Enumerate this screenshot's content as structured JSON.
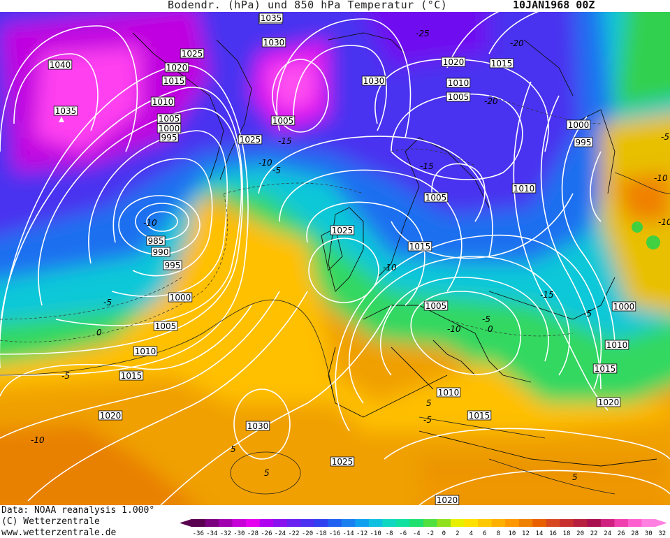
{
  "title": {
    "main": "Bodendr. (hPa) und 850 hPa Temperatur (°C)",
    "date": "10JAN1968 00Z"
  },
  "footer": {
    "data_source": "Data: NOAA reanalysis 1.000°",
    "copyright": "(C) Wetterzentrale",
    "website": "www.wetterzentrale.de"
  },
  "colorbar": {
    "ticks": [
      "-36",
      "-34",
      "-32",
      "-30",
      "-28",
      "-26",
      "-24",
      "-22",
      "-20",
      "-18",
      "-16",
      "-14",
      "-12",
      "-10",
      "-8",
      "-6",
      "-4",
      "-2",
      "0",
      "2",
      "4",
      "6",
      "8",
      "10",
      "12",
      "14",
      "16",
      "18",
      "20",
      "22",
      "24",
      "26",
      "28",
      "30",
      "32"
    ],
    "colors": [
      "#5a0050",
      "#7a0080",
      "#a000b0",
      "#c800d8",
      "#e600f0",
      "#b000f0",
      "#8a10f0",
      "#6a20f0",
      "#4a30f0",
      "#2f40f0",
      "#1e60f0",
      "#1a80f0",
      "#10a0f0",
      "#10c0e0",
      "#10d8c0",
      "#10e0a0",
      "#20e070",
      "#50e040",
      "#90e020",
      "#e8f000",
      "#ffe000",
      "#ffc800",
      "#ffb000",
      "#ff9800",
      "#f08000",
      "#e86000",
      "#d84820",
      "#c83030",
      "#b82040",
      "#a81050",
      "#d02080",
      "#f040b0",
      "#ff60d0",
      "#ff80e0"
    ]
  },
  "isobar_labels": [
    {
      "text": "1035",
      "cls": "p"
    },
    {
      "text": "1030",
      "cls": "p"
    },
    {
      "text": "1040",
      "cls": "p"
    },
    {
      "text": "1025",
      "cls": "p"
    },
    {
      "text": "1020",
      "cls": "p"
    },
    {
      "text": "1015",
      "cls": "p"
    },
    {
      "text": "1010",
      "cls": "p"
    },
    {
      "text": "1035",
      "cls": "p"
    },
    {
      "text": "1005",
      "cls": "p"
    },
    {
      "text": "1000",
      "cls": "p"
    },
    {
      "text": "995",
      "cls": "p"
    },
    {
      "text": "1035",
      "cls": "p"
    },
    {
      "text": "1025",
      "cls": "p"
    },
    {
      "text": "1030",
      "cls": "p"
    },
    {
      "text": "1020",
      "cls": "p"
    },
    {
      "text": "1015",
      "cls": "p"
    },
    {
      "text": "1010",
      "cls": "p"
    },
    {
      "text": "1005",
      "cls": "p"
    },
    {
      "text": "1005",
      "cls": "p"
    },
    {
      "text": "1000",
      "cls": "p"
    },
    {
      "text": "995",
      "cls": "p"
    },
    {
      "text": "1010",
      "cls": "p"
    },
    {
      "text": "1005",
      "cls": "p"
    },
    {
      "text": "1025",
      "cls": "p"
    },
    {
      "text": "1015",
      "cls": "p"
    },
    {
      "text": "985",
      "cls": "p"
    },
    {
      "text": "990",
      "cls": "p"
    },
    {
      "text": "995",
      "cls": "p"
    },
    {
      "text": "1000",
      "cls": "p"
    },
    {
      "text": "1005",
      "cls": "p"
    },
    {
      "text": "1010",
      "cls": "p"
    },
    {
      "text": "1015",
      "cls": "p"
    },
    {
      "text": "1020",
      "cls": "p"
    },
    {
      "text": "1005",
      "cls": "p"
    },
    {
      "text": "1000",
      "cls": "p"
    },
    {
      "text": "1010",
      "cls": "p"
    },
    {
      "text": "1015",
      "cls": "p"
    },
    {
      "text": "1010",
      "cls": "p"
    },
    {
      "text": "1015",
      "cls": "p"
    },
    {
      "text": "1020",
      "cls": "p"
    },
    {
      "text": "1030",
      "cls": "p"
    },
    {
      "text": "1025",
      "cls": "p"
    },
    {
      "text": "1020",
      "cls": "p"
    }
  ],
  "temperature_labels": [
    "-10",
    "-5",
    "0",
    "-5",
    "-10",
    "-15",
    "-20",
    "-25",
    "-20",
    "-15",
    "-10",
    "-5",
    "-10",
    "-5",
    "0",
    "5",
    "-5",
    "-10",
    "5",
    "-15",
    "-10",
    "-5",
    "5",
    "-10",
    "-5",
    "5"
  ]
}
